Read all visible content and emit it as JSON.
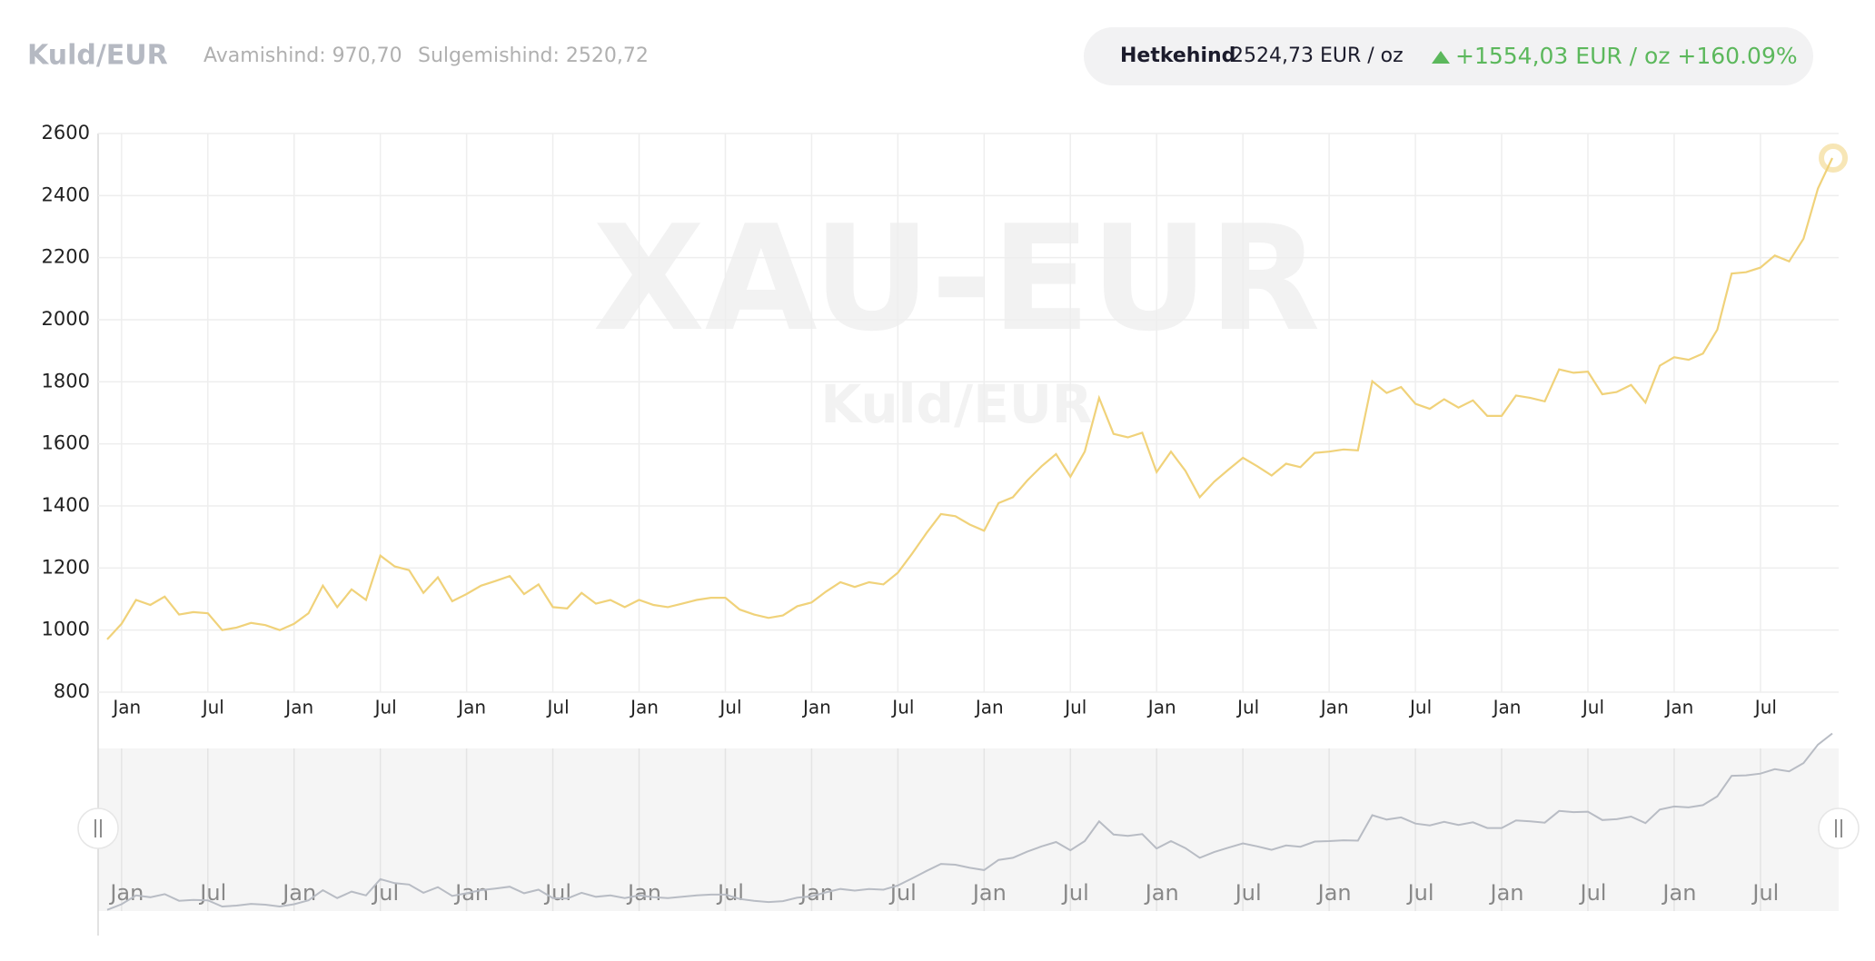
{
  "header": {
    "title": "Kuld/EUR",
    "open": "Avamishind: 970,70",
    "close": "Sulgemishind: 2520,72",
    "current_label": "Hetkehind",
    "current_value": "2524,73 EUR / oz",
    "change": "+1554,03 EUR / oz +160.09%"
  },
  "watermark": {
    "symbol": "XAU-EUR",
    "name": "Kuld/EUR"
  },
  "chart_data": {
    "type": "line",
    "color": "#f0d27a",
    "navigator_color": "#b8bcc4",
    "ylim": [
      800,
      2600
    ],
    "yticks": [
      800,
      1000,
      1200,
      1400,
      1600,
      1800,
      2000,
      2200,
      2400,
      2600
    ],
    "grid": true,
    "categories": [
      null,
      "Jan",
      null,
      null,
      null,
      null,
      null,
      "Jul",
      null,
      null,
      null,
      null,
      null,
      "Jan",
      null,
      null,
      null,
      null,
      null,
      "Jul",
      null,
      null,
      null,
      null,
      null,
      "Jan",
      null,
      null,
      null,
      null,
      null,
      "Jul",
      null,
      null,
      null,
      null,
      null,
      "Jan",
      null,
      null,
      null,
      null,
      null,
      "Jul",
      null,
      null,
      null,
      null,
      null,
      "Jan",
      null,
      null,
      null,
      null,
      null,
      "Jul",
      null,
      null,
      null,
      null,
      null,
      "Jan",
      null,
      null,
      null,
      null,
      null,
      "Jul",
      null,
      null,
      null,
      null,
      null,
      "Jan",
      null,
      null,
      null,
      null,
      null,
      "Jul",
      null,
      null,
      null,
      null,
      null,
      "Jan",
      null,
      null,
      null,
      null,
      null,
      "Jul",
      null,
      null,
      null,
      null,
      null,
      "Jan",
      null,
      null,
      null,
      null,
      null,
      "Jul",
      null,
      null,
      null,
      null,
      null,
      "Jan",
      null,
      null,
      null,
      null,
      null,
      "Jul",
      null,
      null,
      null,
      null,
      null
    ],
    "values": [
      970,
      1020,
      1097,
      1081,
      1108,
      1050,
      1058,
      1054,
      1000,
      1008,
      1023,
      1016,
      1000,
      1020,
      1054,
      1143,
      1074,
      1131,
      1097,
      1240,
      1205,
      1193,
      1120,
      1170,
      1093,
      1116,
      1143,
      1158,
      1174,
      1116,
      1147,
      1074,
      1070,
      1120,
      1085,
      1097,
      1074,
      1097,
      1081,
      1074,
      1085,
      1097,
      1104,
      1104,
      1066,
      1050,
      1039,
      1047,
      1077,
      1089,
      1124,
      1154,
      1139,
      1154,
      1147,
      1185,
      1247,
      1313,
      1374,
      1367,
      1340,
      1320,
      1409,
      1428,
      1482,
      1528,
      1567,
      1494,
      1575,
      1748,
      1632,
      1621,
      1636,
      1509,
      1575,
      1513,
      1428,
      1478,
      1517,
      1555,
      1528,
      1498,
      1536,
      1525,
      1571,
      1575,
      1582,
      1579,
      1802,
      1764,
      1783,
      1729,
      1713,
      1744,
      1717,
      1740,
      1690,
      1690,
      1756,
      1748,
      1737,
      1840,
      1829,
      1833,
      1760,
      1767,
      1790,
      1733,
      1852,
      1879,
      1871,
      1891,
      1968,
      2149,
      2153,
      2168,
      2207,
      2188,
      2261,
      2423,
      2521
    ]
  }
}
